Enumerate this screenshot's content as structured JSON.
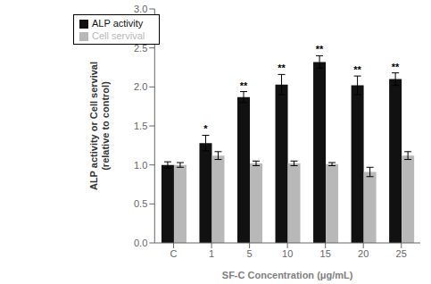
{
  "chart_data": {
    "type": "bar",
    "categories": [
      "C",
      "1",
      "5",
      "10",
      "15",
      "20",
      "25"
    ],
    "series": [
      {
        "name": "ALP activity",
        "color": "#111111",
        "values": [
          1.0,
          1.28,
          1.87,
          2.03,
          2.32,
          2.02,
          2.1
        ],
        "errors": [
          0.04,
          0.1,
          0.07,
          0.13,
          0.08,
          0.12,
          0.08
        ],
        "significance": [
          null,
          "*",
          "**",
          "**",
          "**",
          "**",
          "**"
        ]
      },
      {
        "name": "Cell servival",
        "color": "#b8b8b8",
        "values": [
          1.0,
          1.12,
          1.02,
          1.02,
          1.01,
          0.91,
          1.12
        ],
        "errors": [
          0.03,
          0.05,
          0.03,
          0.03,
          0.02,
          0.06,
          0.05
        ]
      }
    ],
    "xlabel": "SF-C Concentration (μg/mL)",
    "ylabel": "ALP activity or Cell servival\n(relative to control)",
    "ylim": [
      0,
      3.0
    ],
    "yticks": [
      {
        "value": 0,
        "label": "0.0"
      },
      0.5,
      {
        "value": 1,
        "label": "1.0"
      },
      1.5,
      {
        "value": 2,
        "label": "2.0"
      },
      2.5,
      {
        "value": 3,
        "label": "3.0"
      }
    ],
    "legend": "upper left",
    "grid": false
  }
}
